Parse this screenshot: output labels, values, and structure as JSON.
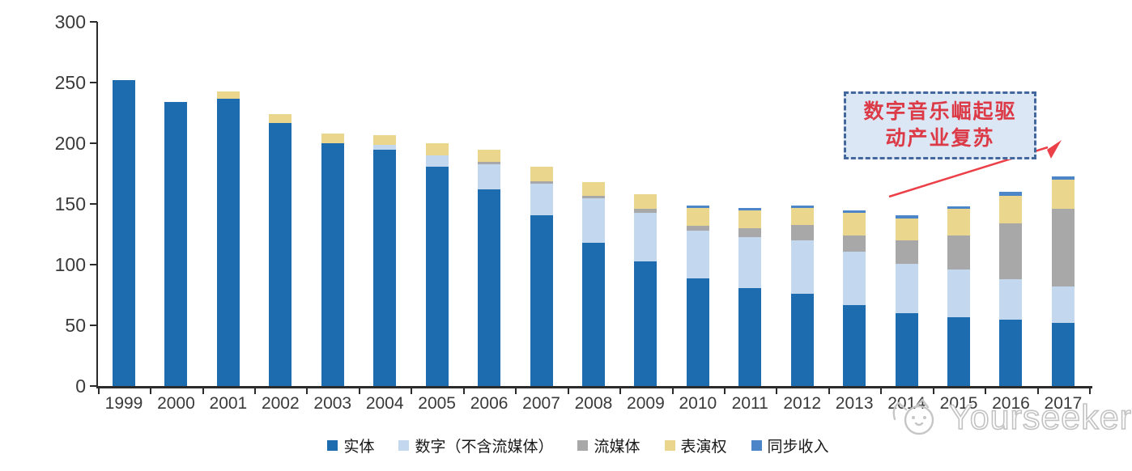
{
  "chart_data": {
    "type": "bar",
    "stacked": true,
    "title": "",
    "xlabel": "",
    "ylabel": "",
    "categories": [
      "1999",
      "2000",
      "2001",
      "2002",
      "2003",
      "2004",
      "2005",
      "2006",
      "2007",
      "2008",
      "2009",
      "2010",
      "2011",
      "2012",
      "2013",
      "2014",
      "2015",
      "2016",
      "2017"
    ],
    "series": [
      {
        "name": "实体",
        "color": "#1E6CB0",
        "values": [
          252,
          234,
          237,
          217,
          200,
          195,
          181,
          162,
          141,
          118,
          103,
          89,
          81,
          76,
          67,
          60,
          57,
          55,
          52
        ]
      },
      {
        "name": "数字（不含流媒体）",
        "color": "#C3D7EF",
        "values": [
          0,
          0,
          0,
          0,
          0,
          4,
          9,
          21,
          26,
          37,
          40,
          39,
          42,
          44,
          44,
          41,
          39,
          33,
          30
        ]
      },
      {
        "name": "流媒体",
        "color": "#A8A8A8",
        "values": [
          0,
          0,
          0,
          0,
          0,
          0,
          0,
          2,
          2,
          2,
          3,
          4,
          7,
          13,
          13,
          19,
          28,
          46,
          64
        ]
      },
      {
        "name": "表演权",
        "color": "#EBD68E",
        "values": [
          0,
          0,
          6,
          7,
          8,
          8,
          10,
          10,
          12,
          11,
          12,
          15,
          15,
          14,
          19,
          18,
          22,
          23,
          24
        ]
      },
      {
        "name": "同步收入",
        "color": "#4C86C8",
        "values": [
          0,
          0,
          0,
          0,
          0,
          0,
          0,
          0,
          0,
          0,
          0,
          2,
          2,
          2,
          2,
          3,
          2,
          3,
          3
        ]
      }
    ],
    "ylim": [
      0,
      300
    ],
    "yticks": [
      0,
      50,
      100,
      150,
      200,
      250,
      300
    ],
    "grid": false,
    "legend_position": "bottom"
  },
  "annotation": {
    "line1": "数字音乐崛起驱",
    "line2": "动产业复苏",
    "border_color": "#44679E",
    "background_color": "#DCE7F5",
    "text_color": "#DC3A46",
    "arrow_color": "#EC4049"
  },
  "watermark": {
    "text": "Yourseeker",
    "color": "#C2C2C2"
  }
}
